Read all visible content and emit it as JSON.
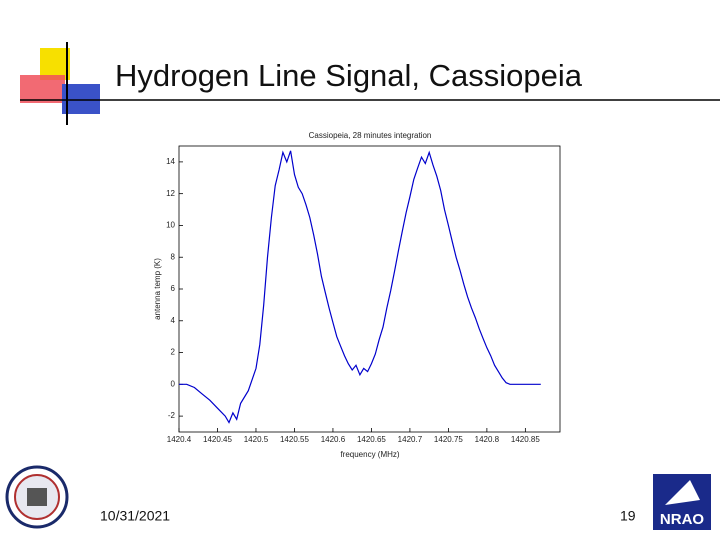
{
  "slide": {
    "title": "Hydrogen Line Signal, Cassiopeia",
    "date": "10/31/2021",
    "page_number": "19",
    "logo_text": "NRAO"
  },
  "chart_data": {
    "type": "line",
    "title": "Cassiopeia, 28 minutes integration",
    "x_label": "frequency (MHz)",
    "y_label": "antenna temp (K)",
    "color": "#0000cc",
    "x": [
      1420.4,
      1420.41,
      1420.42,
      1420.43,
      1420.44,
      1420.45,
      1420.46,
      1420.465,
      1420.47,
      1420.475,
      1420.48,
      1420.49,
      1420.5,
      1420.505,
      1420.51,
      1420.515,
      1420.52,
      1420.525,
      1420.53,
      1420.535,
      1420.54,
      1420.545,
      1420.55,
      1420.555,
      1420.56,
      1420.565,
      1420.57,
      1420.575,
      1420.58,
      1420.585,
      1420.59,
      1420.595,
      1420.6,
      1420.605,
      1420.61,
      1420.615,
      1420.62,
      1420.625,
      1420.63,
      1420.635,
      1420.64,
      1420.645,
      1420.65,
      1420.655,
      1420.66,
      1420.665,
      1420.67,
      1420.675,
      1420.68,
      1420.685,
      1420.69,
      1420.695,
      1420.7,
      1420.705,
      1420.71,
      1420.715,
      1420.72,
      1420.725,
      1420.73,
      1420.735,
      1420.74,
      1420.745,
      1420.75,
      1420.755,
      1420.76,
      1420.765,
      1420.77,
      1420.775,
      1420.78,
      1420.785,
      1420.79,
      1420.795,
      1420.8,
      1420.805,
      1420.81,
      1420.815,
      1420.82,
      1420.825,
      1420.83,
      1420.84,
      1420.85,
      1420.86,
      1420.87
    ],
    "values": [
      0.0,
      0.0,
      -0.2,
      -0.6,
      -1.0,
      -1.5,
      -2.0,
      -2.4,
      -1.8,
      -2.2,
      -1.2,
      -0.4,
      1.0,
      2.5,
      5.0,
      8.0,
      10.5,
      12.5,
      13.5,
      14.6,
      14.0,
      14.7,
      13.2,
      12.4,
      12.0,
      11.3,
      10.5,
      9.4,
      8.2,
      6.8,
      5.8,
      4.8,
      3.9,
      3.0,
      2.4,
      1.8,
      1.3,
      0.9,
      1.2,
      0.6,
      1.0,
      0.8,
      1.3,
      1.9,
      2.8,
      3.6,
      4.8,
      5.9,
      7.1,
      8.4,
      9.6,
      10.8,
      11.8,
      12.9,
      13.6,
      14.3,
      13.9,
      14.6,
      13.8,
      13.1,
      12.2,
      11.0,
      10.0,
      9.0,
      8.0,
      7.2,
      6.3,
      5.5,
      4.8,
      4.2,
      3.5,
      2.9,
      2.3,
      1.8,
      1.2,
      0.8,
      0.4,
      0.1,
      0.0,
      0.0,
      0.0,
      0.0,
      0.0
    ],
    "xlim": [
      1420.4,
      1420.895
    ],
    "xticks": [
      1420.4,
      1420.45,
      1420.5,
      1420.55,
      1420.6,
      1420.65,
      1420.7,
      1420.75,
      1420.8,
      1420.85
    ],
    "ylim": [
      -3,
      15
    ],
    "yticks": [
      -2,
      0,
      2,
      4,
      6,
      8,
      10,
      12,
      14
    ]
  }
}
